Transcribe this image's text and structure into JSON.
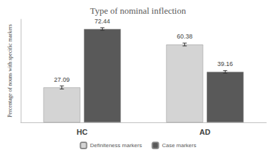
{
  "chart_data": {
    "type": "bar",
    "title": "Type of nominal inflection",
    "y_label": "Percentage of nouns with specific markers",
    "categories": [
      "HC",
      "AD"
    ],
    "series": [
      {
        "name": "Definiteness markers",
        "color": "#d4d4d4",
        "values": [
          27.09,
          60.38
        ],
        "errors": [
          1.2,
          1.1
        ]
      },
      {
        "name": "Case markers",
        "color": "#595959",
        "values": [
          72.44,
          39.16
        ],
        "errors": [
          1.0,
          1.0
        ]
      }
    ],
    "ylim": [
      0,
      80
    ],
    "grid": false,
    "legend": "bottom",
    "data_labels": true,
    "tick_labels": "x"
  }
}
